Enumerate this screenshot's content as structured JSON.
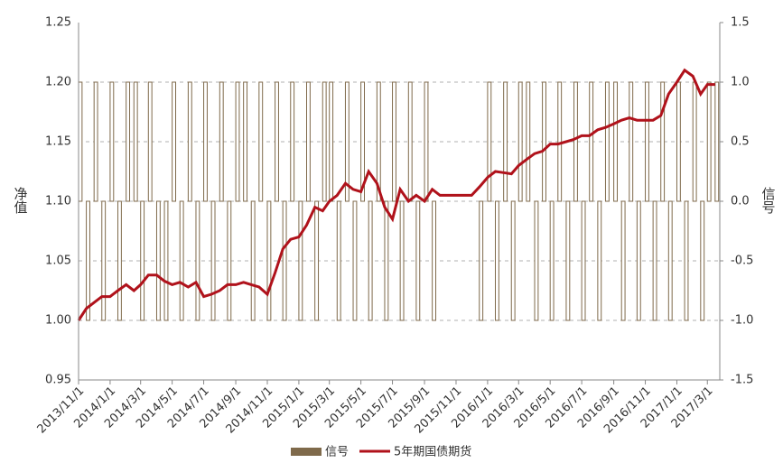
{
  "chart_data": {
    "type": "bar-line",
    "y_label": "净值",
    "y2_label": "信号",
    "x": [
      "2013/11/1",
      "2013/11/16",
      "2013/12/1",
      "2013/12/16",
      "2014/1/1",
      "2014/1/16",
      "2014/2/1",
      "2014/2/16",
      "2014/3/1",
      "2014/3/16",
      "2014/4/1",
      "2014/4/16",
      "2014/5/1",
      "2014/5/16",
      "2014/6/1",
      "2014/6/16",
      "2014/7/1",
      "2014/7/16",
      "2014/8/1",
      "2014/8/16",
      "2014/9/1",
      "2014/9/16",
      "2014/10/1",
      "2014/10/16",
      "2014/11/1",
      "2014/11/16",
      "2014/12/1",
      "2014/12/16",
      "2015/1/1",
      "2015/1/16",
      "2015/2/1",
      "2015/2/16",
      "2015/3/1",
      "2015/3/16",
      "2015/4/1",
      "2015/4/16",
      "2015/5/1",
      "2015/5/16",
      "2015/6/1",
      "2015/6/16",
      "2015/7/1",
      "2015/7/16",
      "2015/8/1",
      "2015/8/16",
      "2015/9/1",
      "2015/9/16",
      "2015/10/1",
      "2015/10/16",
      "2015/11/1",
      "2015/11/16",
      "2015/12/1",
      "2015/12/16",
      "2016/1/1",
      "2016/1/16",
      "2016/2/1",
      "2016/2/16",
      "2016/3/1",
      "2016/3/16",
      "2016/4/1",
      "2016/4/16",
      "2016/5/1",
      "2016/5/16",
      "2016/6/1",
      "2016/6/16",
      "2016/7/1",
      "2016/7/16",
      "2016/8/1",
      "2016/8/16",
      "2016/9/1",
      "2016/9/16",
      "2016/10/1",
      "2016/10/16",
      "2016/11/1",
      "2016/11/16",
      "2016/12/1",
      "2016/12/16",
      "2017/1/1",
      "2017/1/16",
      "2017/2/1",
      "2017/2/16",
      "2017/3/1",
      "2017/3/16"
    ],
    "xlim": [
      "2013/11/1",
      "2017/3/25"
    ],
    "xticks": [
      "2013/11/1",
      "2014/1/1",
      "2014/3/1",
      "2014/5/1",
      "2014/7/1",
      "2014/9/1",
      "2014/11/1",
      "2015/1/1",
      "2015/3/1",
      "2015/5/1",
      "2015/7/1",
      "2015/9/1",
      "2015/11/1",
      "2016/1/1",
      "2016/3/1",
      "2016/5/1",
      "2016/7/1",
      "2016/9/1",
      "2016/11/1",
      "2017/1/1",
      "2017/3/1"
    ],
    "ylim": [
      0.95,
      1.25
    ],
    "yticks": [
      0.95,
      {
        "value": 1,
        "label": "1.00"
      },
      1.05,
      {
        "value": 1.1,
        "label": "1.10"
      },
      1.15,
      {
        "value": 1.2,
        "label": "1.20"
      },
      1.25
    ],
    "y2lim": [
      -1.5,
      1.5
    ],
    "y2ticks": [
      {
        "value": -1.5,
        "label": "-1.5"
      },
      {
        "value": -1,
        "label": "-1.0"
      },
      -0.5,
      {
        "value": 0,
        "label": "0.0"
      },
      0.5,
      {
        "value": 1,
        "label": "1.0"
      },
      1.5
    ],
    "grid": true,
    "series": [
      {
        "name": "信号",
        "type": "bar",
        "axis": "y2",
        "color": "#7f6a4b",
        "values": [
          1,
          -1,
          1,
          -1,
          1,
          -1,
          1,
          1,
          -1,
          1,
          -1,
          -1,
          1,
          -1,
          1,
          -1,
          1,
          -1,
          1,
          -1,
          1,
          1,
          -1,
          1,
          -1,
          1,
          -1,
          1,
          -1,
          1,
          -1,
          1,
          1,
          -1,
          1,
          -1,
          1,
          -1,
          1,
          -1,
          1,
          -1,
          1,
          -1,
          1,
          -1,
          0,
          0,
          0,
          0,
          0,
          -1,
          1,
          -1,
          1,
          -1,
          1,
          1,
          -1,
          1,
          -1,
          1,
          -1,
          1,
          -1,
          1,
          -1,
          1,
          1,
          -1,
          1,
          -1,
          1,
          -1,
          1,
          -1,
          1,
          -1,
          1,
          -1,
          1,
          1
        ]
      },
      {
        "name": "5年期国债期货",
        "type": "line",
        "axis": "y",
        "color": "#b0121b",
        "values": [
          1.0,
          1.01,
          1.015,
          1.02,
          1.02,
          1.025,
          1.03,
          1.025,
          1.03,
          1.038,
          1.038,
          1.033,
          1.03,
          1.032,
          1.028,
          1.032,
          1.02,
          1.022,
          1.025,
          1.03,
          1.03,
          1.032,
          1.03,
          1.028,
          1.022,
          1.04,
          1.06,
          1.068,
          1.07,
          1.08,
          1.095,
          1.092,
          1.1,
          1.105,
          1.115,
          1.11,
          1.108,
          1.125,
          1.115,
          1.095,
          1.085,
          1.11,
          1.1,
          1.105,
          1.1,
          1.11,
          1.105,
          1.105,
          1.105,
          1.105,
          1.105,
          1.112,
          1.12,
          1.125,
          1.124,
          1.123,
          1.13,
          1.135,
          1.14,
          1.142,
          1.148,
          1.148,
          1.15,
          1.152,
          1.155,
          1.155,
          1.16,
          1.162,
          1.165,
          1.168,
          1.17,
          1.168,
          1.168,
          1.168,
          1.172,
          1.19,
          1.2,
          1.21,
          1.205,
          1.19,
          1.198,
          1.198
        ]
      }
    ]
  }
}
